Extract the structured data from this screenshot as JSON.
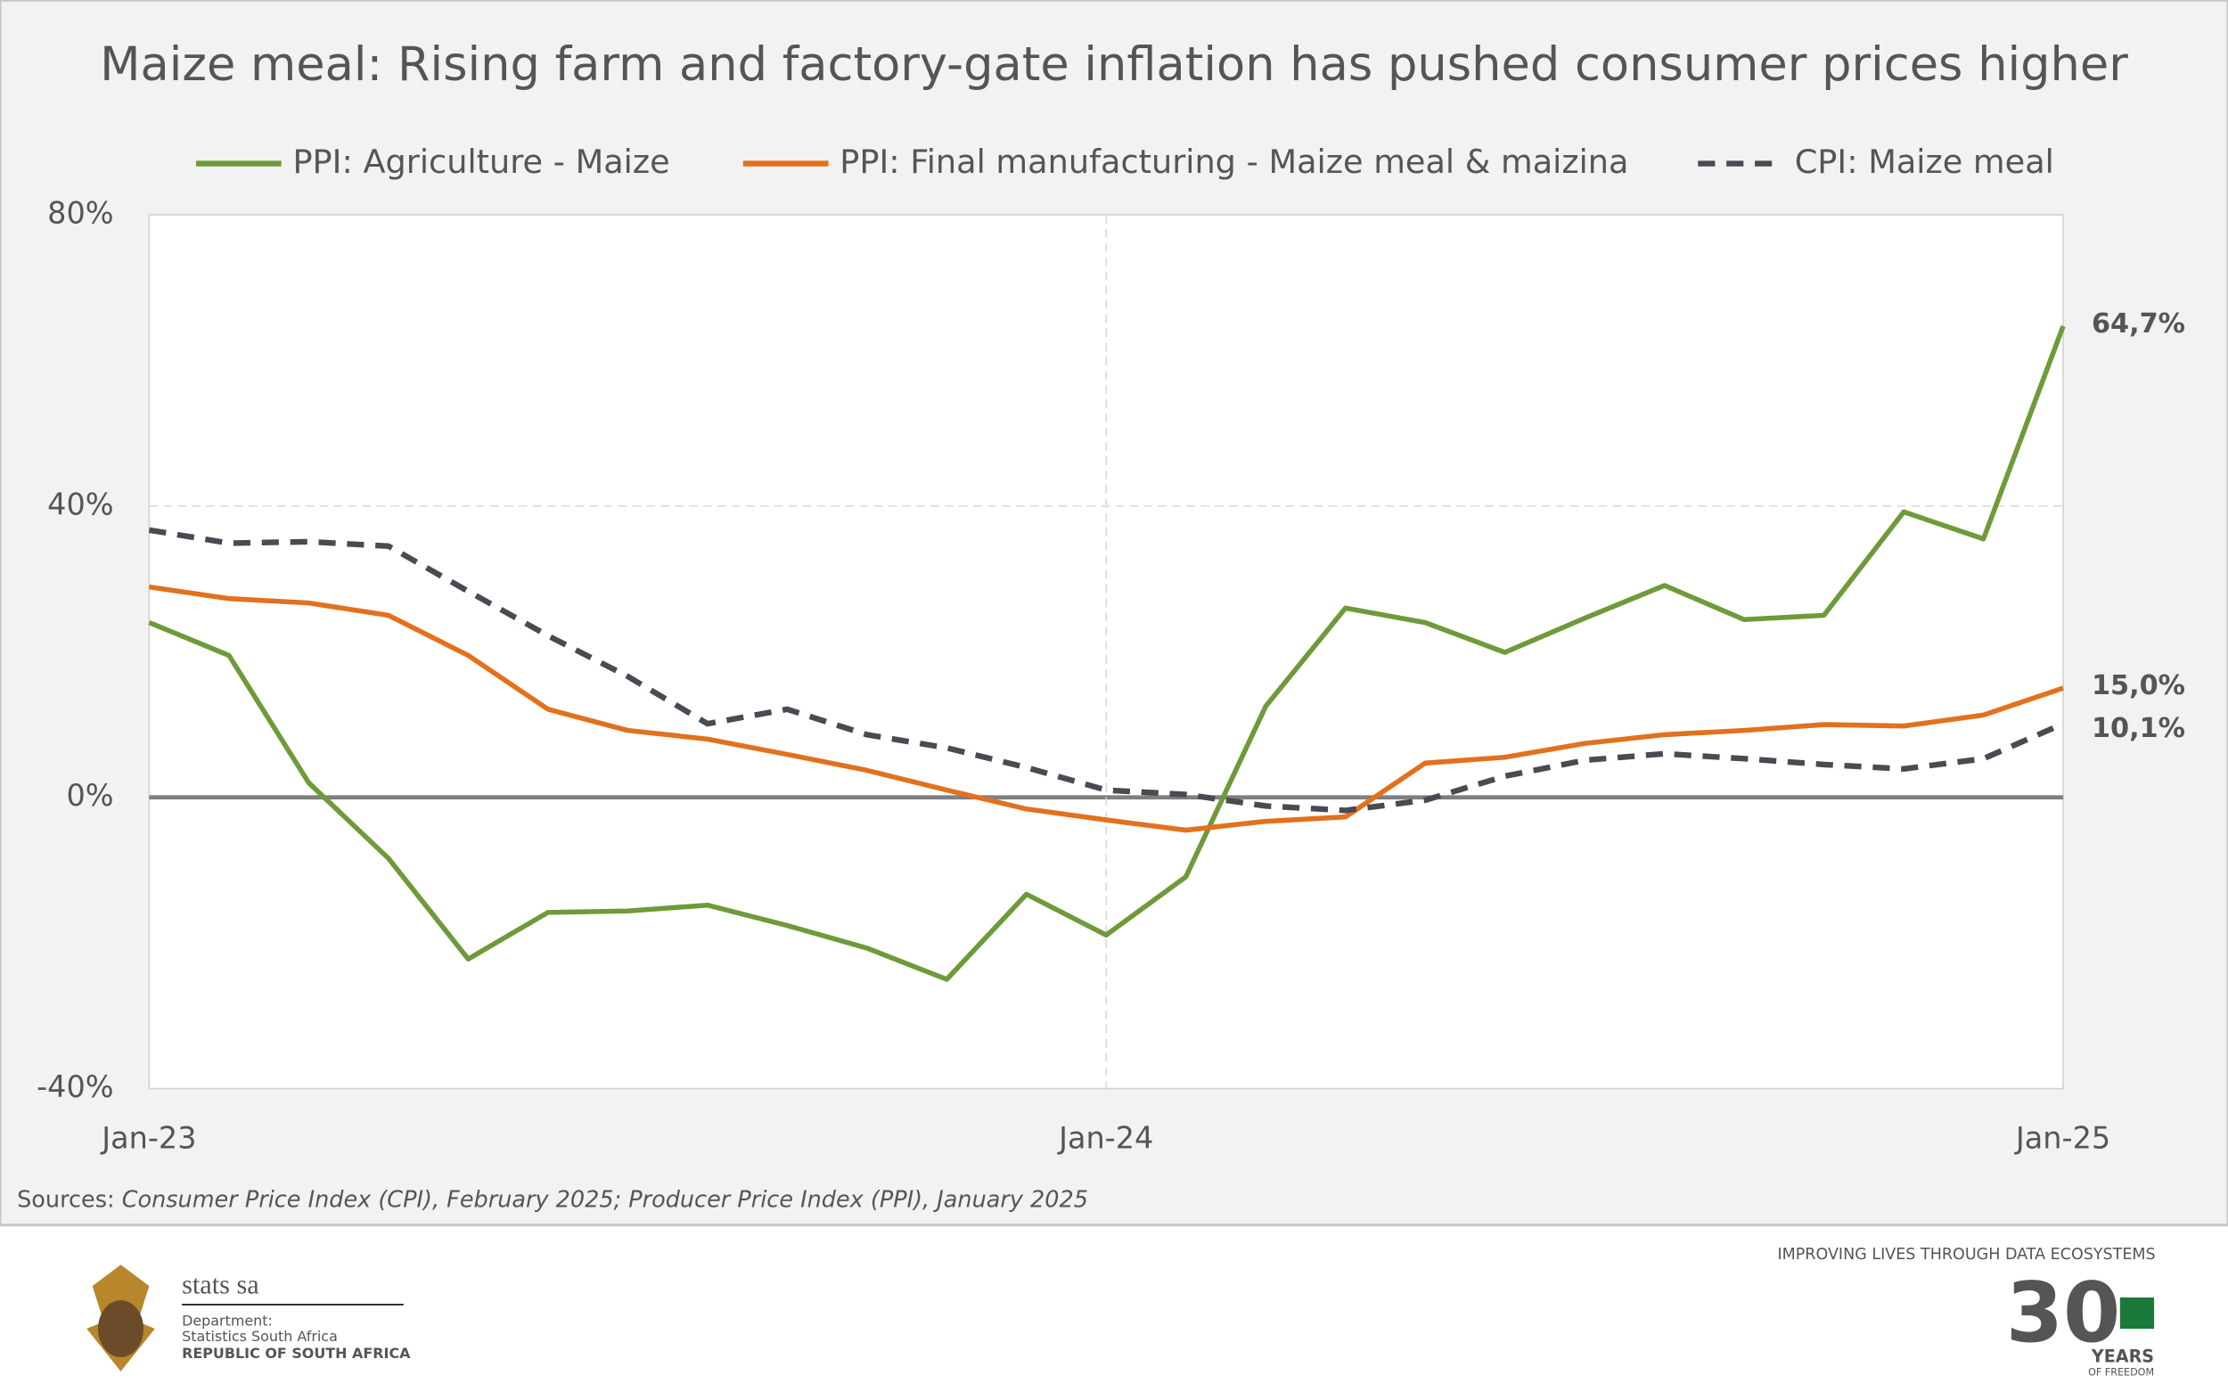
{
  "chart_data": {
    "type": "line",
    "title": "Maize meal: Rising farm and factory-gate inflation has pushed consumer prices higher",
    "categories": [
      "Jan-23",
      null,
      null,
      null,
      null,
      null,
      null,
      null,
      null,
      null,
      null,
      null,
      "Jan-24",
      null,
      null,
      null,
      null,
      null,
      null,
      null,
      null,
      null,
      null,
      null,
      "Jan-25"
    ],
    "series": [
      {
        "name": "PPI: Agriculture - Maize",
        "color": "#6f9a3a",
        "dashed": false,
        "values": [
          24.0,
          19.5,
          2.0,
          -8.4,
          -22.2,
          -15.8,
          -15.6,
          -14.8,
          -17.6,
          -20.7,
          -25.0,
          -13.3,
          -18.9,
          -10.9,
          12.5,
          26.0,
          24.0,
          19.9,
          24.6,
          29.1,
          24.4,
          25.0,
          39.2,
          35.5,
          64.7
        ],
        "value_labels": [
          null,
          null,
          null,
          null,
          null,
          null,
          null,
          null,
          null,
          null,
          null,
          null,
          null,
          null,
          null,
          null,
          null,
          null,
          null,
          null,
          null,
          null,
          null,
          null,
          "64,7%"
        ]
      },
      {
        "name": "PPI: Final manufacturing - Maize meal & maizina",
        "color": "#e2711d",
        "dashed": false,
        "values": [
          28.9,
          27.3,
          26.7,
          25.0,
          19.5,
          12.1,
          9.2,
          8.0,
          5.9,
          3.7,
          1.0,
          -1.6,
          -3.1,
          -4.5,
          -3.3,
          -2.7,
          4.7,
          5.5,
          7.4,
          8.6,
          9.2,
          10.0,
          9.8,
          11.3,
          15.0
        ],
        "value_labels": [
          null,
          null,
          null,
          null,
          null,
          null,
          null,
          null,
          null,
          null,
          null,
          null,
          null,
          null,
          null,
          null,
          null,
          null,
          null,
          null,
          null,
          null,
          null,
          null,
          "15,0%"
        ]
      },
      {
        "name": "CPI: Maize meal",
        "color": "#474b52",
        "dashed": true,
        "values": [
          36.7,
          34.9,
          35.1,
          34.5,
          28.3,
          22.2,
          16.6,
          10.1,
          12.1,
          8.6,
          6.8,
          4.1,
          1.0,
          0.4,
          -1.2,
          -1.8,
          -0.4,
          2.9,
          5.1,
          6.0,
          5.3,
          4.5,
          3.9,
          5.3,
          10.1
        ],
        "value_labels": [
          null,
          null,
          null,
          null,
          null,
          null,
          null,
          null,
          null,
          null,
          null,
          null,
          null,
          null,
          null,
          null,
          null,
          null,
          null,
          null,
          null,
          null,
          null,
          null,
          "10,1%"
        ]
      }
    ],
    "ylim": [
      -40,
      80
    ],
    "yticks": [
      {
        "value": -40,
        "label": "-40%"
      },
      {
        "value": 0,
        "label": "0%"
      },
      {
        "value": 40,
        "label": "40%"
      },
      {
        "value": 80,
        "label": "80%"
      }
    ],
    "grid": true,
    "legend": "top",
    "source": "Sources: ",
    "source_detail": "Consumer Price Index (CPI), February 2025; Producer Price Index (PPI), January 2025"
  },
  "footer": {
    "org": "stats sa",
    "dept": "Department:",
    "dept_name": "Statistics South Africa",
    "country": "REPUBLIC OF SOUTH AFRICA",
    "tagline": "IMPROVING LIVES THROUGH DATA ECOSYSTEMS",
    "badge_number": "30",
    "badge_years": "YEARS",
    "badge_freedom": "OF FREEDOM"
  }
}
